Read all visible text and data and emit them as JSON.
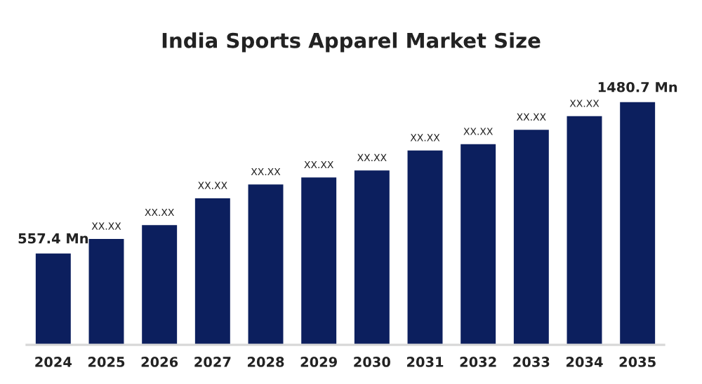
{
  "chart_data": {
    "type": "bar",
    "title": "India Sports Apparel Market Size",
    "color": "#0c1f5e",
    "categories": [
      "2024",
      "2025",
      "2026",
      "2027",
      "2028",
      "2029",
      "2030",
      "2031",
      "2032",
      "2033",
      "2034",
      "2035"
    ],
    "values": [
      557.4,
      646,
      730,
      894,
      978,
      1021,
      1064,
      1186,
      1224,
      1312,
      1395,
      1480.7
    ],
    "value_labels": [
      "557.4 Mn",
      "XX.XX",
      "XX.XX",
      "XX.XX",
      "XX.XX",
      "XX.XX",
      "XX.XX",
      "XX.XX",
      "XX.XX",
      "XX.XX",
      "XX.XX",
      "1480.7 Mn"
    ],
    "grid": false,
    "legend": false
  }
}
